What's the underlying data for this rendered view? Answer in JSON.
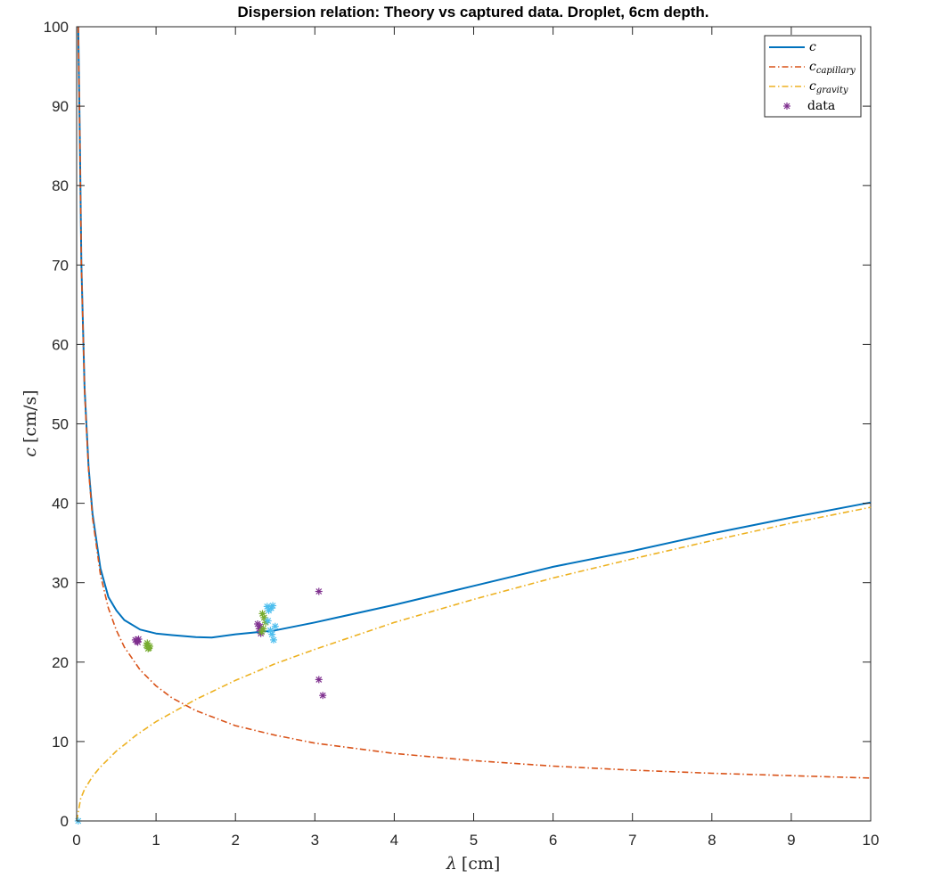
{
  "chart_data": {
    "type": "line",
    "title": "Dispersion relation: Theory vs captured data. Droplet, 6cm depth.",
    "xlabel": {
      "symbol": "λ",
      "unit": "[cm]"
    },
    "ylabel": {
      "symbol": "c",
      "unit": "[cm/s]"
    },
    "xlim": [
      0,
      10
    ],
    "ylim": [
      0,
      100
    ],
    "xticks": [
      0,
      1,
      2,
      3,
      4,
      5,
      6,
      7,
      8,
      9,
      10
    ],
    "yticks": [
      0,
      10,
      20,
      30,
      40,
      50,
      60,
      70,
      80,
      90,
      100
    ],
    "grid": false,
    "legend_position": "top-right",
    "series": [
      {
        "name": "c",
        "kind": "line",
        "style": "solid",
        "color": "#0072BD",
        "x": [
          0.02,
          0.04,
          0.06,
          0.1,
          0.15,
          0.2,
          0.3,
          0.4,
          0.5,
          0.6,
          0.8,
          1.0,
          1.2,
          1.5,
          1.7,
          2.0,
          2.5,
          3.0,
          4.0,
          5.0,
          6.0,
          7.0,
          8.0,
          9.0,
          10.0
        ],
        "y": [
          100,
          86,
          70.2,
          54.5,
          44.6,
          38.7,
          31.8,
          28.2,
          26.5,
          25.3,
          24.1,
          23.6,
          23.4,
          23.15,
          23.1,
          23.5,
          24.0,
          25.0,
          27.2,
          29.6,
          32.0,
          34.0,
          36.2,
          38.2,
          40.1
        ]
      },
      {
        "name": "c_capillary",
        "label": {
          "base": "c",
          "sub": "capillary"
        },
        "kind": "line",
        "style": "dashdot",
        "color": "#D95319",
        "x": [
          0.02,
          0.04,
          0.06,
          0.1,
          0.15,
          0.2,
          0.3,
          0.4,
          0.5,
          0.6,
          0.8,
          1.0,
          1.2,
          1.5,
          2.0,
          2.5,
          3.0,
          4.0,
          5.0,
          6.0,
          7.0,
          8.0,
          9.0,
          10.0
        ],
        "y": [
          100,
          86,
          70.0,
          54.2,
          44.2,
          38.2,
          31.0,
          26.8,
          24.0,
          21.9,
          19.0,
          17.0,
          15.5,
          13.9,
          12.0,
          10.8,
          9.8,
          8.5,
          7.6,
          6.9,
          6.4,
          6.0,
          5.7,
          5.4
        ]
      },
      {
        "name": "c_gravity",
        "label": {
          "base": "c",
          "sub": "gravity"
        },
        "kind": "line",
        "style": "dashdot",
        "color": "#EDB120",
        "x": [
          0.0,
          0.05,
          0.1,
          0.2,
          0.3,
          0.5,
          0.75,
          1.0,
          1.5,
          2.0,
          2.5,
          3.0,
          4.0,
          5.0,
          6.0,
          7.0,
          8.0,
          9.0,
          10.0
        ],
        "y": [
          0.0,
          2.8,
          4.0,
          5.6,
          6.8,
          8.8,
          10.8,
          12.5,
          15.3,
          17.7,
          19.8,
          21.6,
          25.0,
          27.9,
          30.6,
          33.0,
          35.3,
          37.5,
          39.5
        ]
      },
      {
        "name": "data",
        "kind": "scatter",
        "color": "#7E2F8E",
        "x": [
          0.74,
          0.76,
          0.78,
          0.77,
          2.28,
          2.3,
          2.32,
          2.31,
          3.05,
          3.05,
          3.1
        ],
        "y": [
          22.8,
          22.6,
          22.9,
          22.5,
          24.8,
          24.2,
          23.6,
          24.5,
          28.9,
          17.8,
          15.8
        ]
      },
      {
        "name": "data_green",
        "kind": "scatter",
        "color": "#77AC30",
        "x": [
          0.88,
          0.9,
          0.92,
          0.89,
          0.91,
          2.34,
          2.36,
          2.38,
          2.35,
          2.33
        ],
        "y": [
          22.1,
          21.7,
          22.0,
          22.4,
          21.8,
          26.1,
          25.6,
          25.0,
          24.2,
          23.8
        ]
      },
      {
        "name": "data_cyan",
        "kind": "scatter",
        "color": "#4DBEEE",
        "x": [
          0.02,
          2.4,
          2.42,
          2.45,
          2.47,
          2.5,
          2.44,
          2.46,
          2.48,
          2.41
        ],
        "y": [
          0.0,
          27.0,
          26.5,
          26.8,
          27.1,
          24.5,
          24.0,
          23.5,
          22.8,
          25.2
        ]
      }
    ],
    "legend_entries": [
      "c",
      "c_capillary",
      "c_gravity",
      "data"
    ]
  }
}
